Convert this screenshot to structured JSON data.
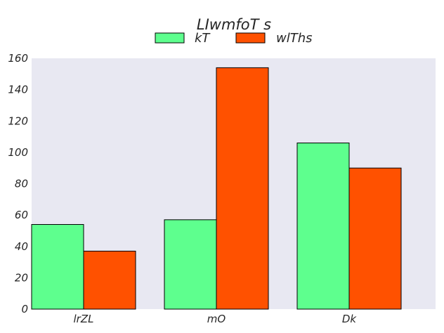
{
  "chart_data": {
    "type": "bar",
    "title": "LIwmfoT s",
    "xlabel": "",
    "ylabel": "",
    "categories": [
      "lrZL",
      "mO",
      "Dk"
    ],
    "series": [
      {
        "name": "kT",
        "values": [
          54,
          57,
          106
        ],
        "color": "#5eff8e"
      },
      {
        "name": "wlThs",
        "values": [
          37,
          154,
          90
        ],
        "color": "#ff5100"
      }
    ],
    "ylim": [
      0,
      160
    ],
    "yticks": [
      0,
      20,
      40,
      60,
      80,
      100,
      120,
      140,
      160
    ],
    "grid": false,
    "legend_position": "top-center",
    "plot_background": "#e8e8f2"
  }
}
